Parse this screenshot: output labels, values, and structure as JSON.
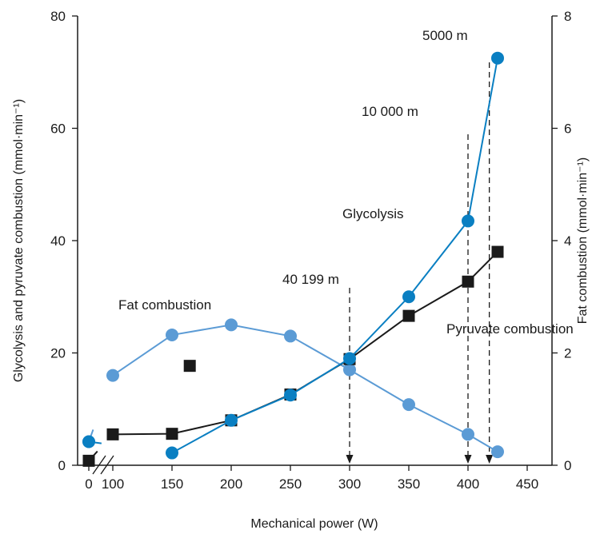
{
  "chart_data": {
    "type": "line",
    "xlabel": "Mechanical power (W)",
    "ylabel_left": "Glycolysis and pyruvate combustion (mmol·min⁻¹)",
    "ylabel_right": "Fat combustion (mmol·min⁻¹)",
    "x_ticks": [
      "0",
      "100",
      "150",
      "200",
      "250",
      "300",
      "350",
      "400",
      "450"
    ],
    "y_left_ticks": [
      "0",
      "20",
      "40",
      "60",
      "80"
    ],
    "y_right_ticks": [
      "0",
      "2",
      "4",
      "6",
      "8"
    ],
    "xlim": [
      0,
      450
    ],
    "ylim_left": [
      0,
      80
    ],
    "ylim_right": [
      0,
      8
    ],
    "x_axis_break": "between 0 and 100",
    "series": [
      {
        "name": "Glycolysis",
        "axis": "left",
        "marker": "circle",
        "color": "#0a7fc2",
        "x": [
          0,
          150,
          200,
          250,
          300,
          350,
          400,
          425
        ],
        "y": [
          4.2,
          2.2,
          8.0,
          12.5,
          19.0,
          30.0,
          43.5,
          72.5
        ]
      },
      {
        "name": "Pyruvate combustion",
        "axis": "left",
        "marker": "square",
        "color": "#1a1a1a",
        "x": [
          0,
          100,
          150,
          200,
          250,
          300,
          350,
          400,
          425
        ],
        "y": [
          0.8,
          5.5,
          5.6,
          8.0,
          12.6,
          18.9,
          26.6,
          32.7,
          38.0
        ]
      },
      {
        "name": "Fat combustion",
        "axis": "right",
        "marker": "circle",
        "color": "#5b9bd5",
        "x": [
          0,
          100,
          150,
          200,
          250,
          300,
          350,
          400,
          425
        ],
        "y": [
          0.42,
          1.6,
          2.32,
          2.5,
          2.3,
          1.7,
          1.08,
          0.55,
          0.24
        ]
      }
    ],
    "outlier_points": [
      {
        "series": "Pyruvate combustion",
        "x": 165,
        "y": 17.7
      }
    ],
    "vertical_markers": [
      {
        "x": 300,
        "label": "40 199 m"
      },
      {
        "x": 400,
        "label": "10 000 m"
      },
      {
        "x": 418,
        "label": "5000 m"
      }
    ],
    "annotations": [
      {
        "text": "Fat combustion"
      },
      {
        "text": "Glycolysis"
      },
      {
        "text": "Pyruvate combustion"
      }
    ],
    "grid": false,
    "legend": "none"
  }
}
